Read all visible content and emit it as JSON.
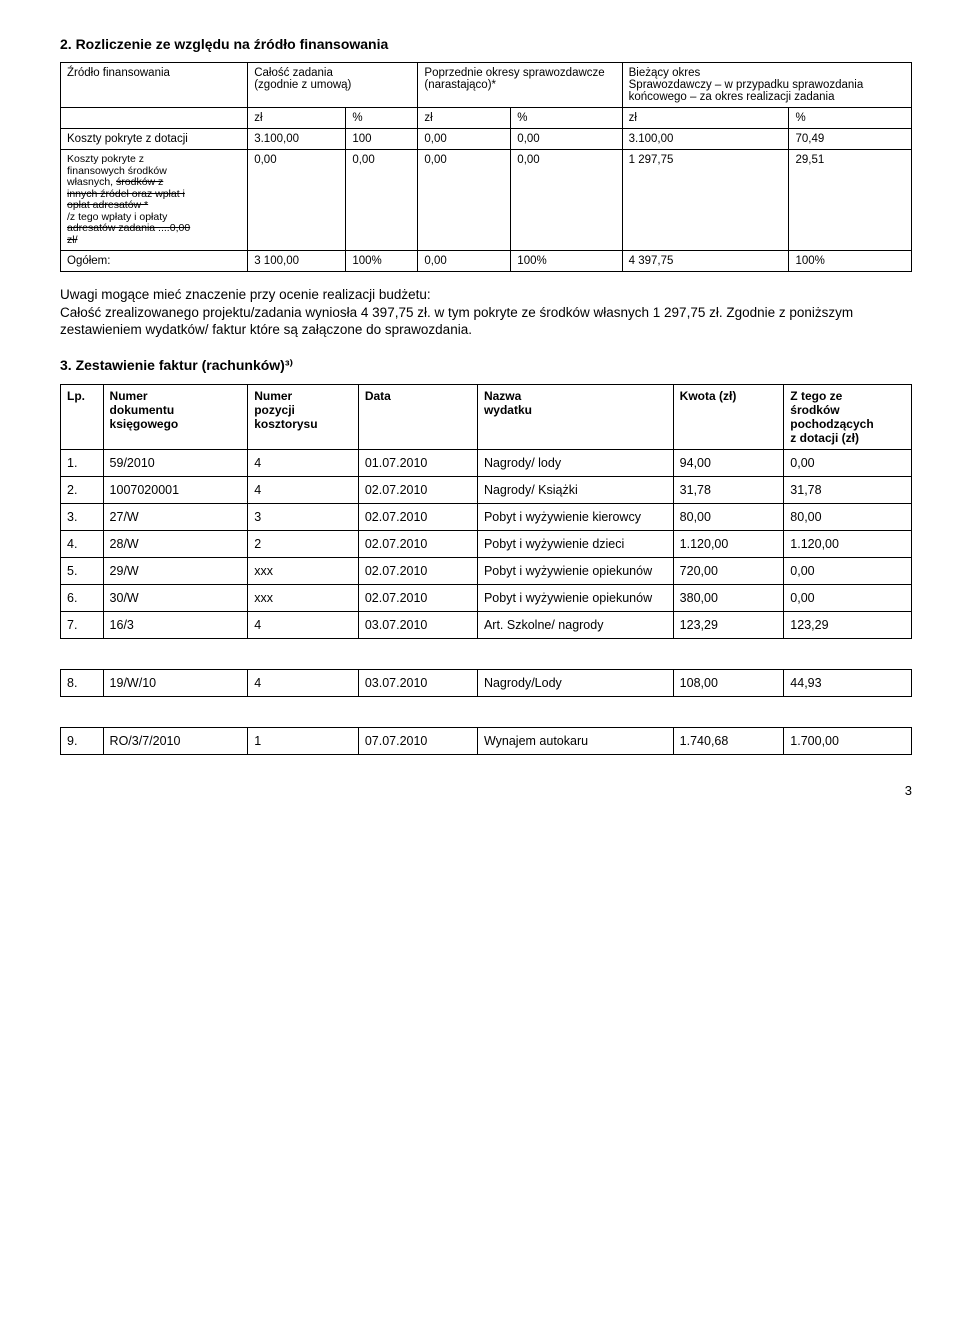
{
  "section2": {
    "title": "2. Rozliczenie ze względu na źródło finansowania",
    "headers": {
      "c1": "Źródło finansowania",
      "c2": "Całość zadania\n(zgodnie z umową)",
      "c3": "Poprzednie okresy sprawozdawcze (narastająco)*",
      "c4": "Bieżący okres\nSprawozdawczy – w przypadku sprawozdania końcowego – za okres realizacji zadania"
    },
    "unitrow": {
      "u1": "zł",
      "u2": "%",
      "u3": "zł",
      "u4": "%",
      "u5": "zł",
      "u6": "%"
    },
    "r1": {
      "label": "Koszty pokryte z dotacji",
      "v1": "3.100,00",
      "v2": "100",
      "v3": "0,00",
      "v4": "0,00",
      "v5": "3.100,00",
      "v6": "70,49"
    },
    "r2": {
      "label_plain": "Koszty pokryte z\nfinansowych środków\nwłasnych, ",
      "label_strike1": "środków z\ninnych źródeł oraz wpłat i\nopłat adresatów *",
      "label_mid": "\n/z tego wpłaty i opłaty\n",
      "label_strike2": "adresatów zadania ....0,00\nzł/",
      "v1": "0,00",
      "v2": "0,00",
      "v3": "0,00",
      "v4": "0,00",
      "v5": "1 297,75",
      "v6": "29,51"
    },
    "r3": {
      "label": "Ogółem:",
      "v1": "3 100,00",
      "v2": "100%",
      "v3": "0,00",
      "v4": "100%",
      "v5": "4 397,75",
      "v6": "100%"
    }
  },
  "notes": {
    "line1": "Uwagi mogące mieć znaczenie przy ocenie realizacji budżetu:",
    "line2": "Całość zrealizowanego projektu/zadania wyniosła 4 397,75 zł. w tym pokryte ze środków własnych 1 297,75 zł.  Zgodnie z poniższym zestawieniem wydatków/ faktur które są załączone do sprawozdania."
  },
  "section3": {
    "title": "3. Zestawienie faktur (rachunków)³⁾",
    "headers": {
      "lp": "Lp.",
      "doc": "Numer\ndokumentu\nksięgowego",
      "poz": "Numer\npozycji\nkosztorysu",
      "date": "Data",
      "name": "Nazwa\nwydatku",
      "kw": "Kwota (zł)",
      "zt": "Z tego ze\nśrodków\npochodzących\nz dotacji (zł)"
    },
    "rows": [
      {
        "lp": "1.",
        "doc": "59/2010",
        "poz": "4",
        "date": "01.07.2010",
        "name": "Nagrody/ lody",
        "kw": "94,00",
        "zt": "0,00"
      },
      {
        "lp": "2.",
        "doc": "1007020001",
        "poz": "4",
        "date": "02.07.2010",
        "name": "Nagrody/ Książki",
        "kw": "31,78",
        "zt": "31,78"
      },
      {
        "lp": "3.",
        "doc": "27/W",
        "poz": "3",
        "date": "02.07.2010",
        "name": "Pobyt i wyżywienie kierowcy",
        "kw": "80,00",
        "zt": "80,00"
      },
      {
        "lp": "4.",
        "doc": "28/W",
        "poz": "2",
        "date": "02.07.2010",
        "name": "Pobyt i wyżywienie dzieci",
        "kw": "1.120,00",
        "zt": "1.120,00"
      },
      {
        "lp": "5.",
        "doc": "29/W",
        "poz": "xxx",
        "date": "02.07.2010",
        "name": "Pobyt i wyżywienie opiekunów",
        "kw": "720,00",
        "zt": "0,00"
      },
      {
        "lp": "6.",
        "doc": "30/W",
        "poz": "xxx",
        "date": "02.07.2010",
        "name": "Pobyt i wyżywienie opiekunów",
        "kw": "380,00",
        "zt": "0,00"
      },
      {
        "lp": "7.",
        "doc": "16/3",
        "poz": "4",
        "date": "03.07.2010",
        "name": "Art. Szkolne/ nagrody",
        "kw": "123,29",
        "zt": "123,29"
      },
      {
        "lp": "8.",
        "doc": "19/W/10",
        "poz": "4",
        "date": "03.07.2010",
        "name": "Nagrody/Lody",
        "kw": "108,00",
        "zt": "44,93"
      },
      {
        "lp": "9.",
        "doc": "RO/3/7/2010",
        "poz": "1",
        "date": "07.07.2010",
        "name": "Wynajem autokaru",
        "kw": "1.740,68",
        "zt": "1.700,00"
      }
    ]
  },
  "page": "3"
}
